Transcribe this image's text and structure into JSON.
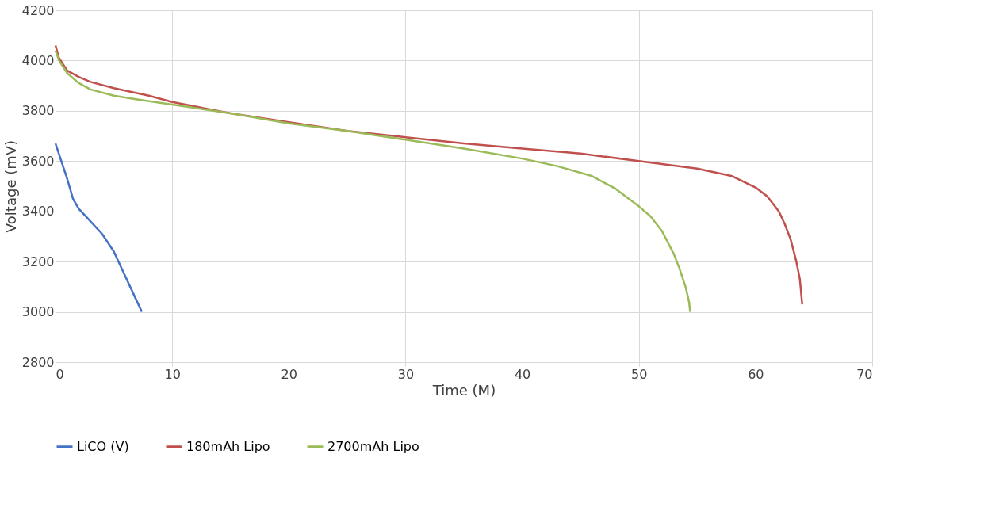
{
  "chart_data": {
    "type": "line",
    "xlabel": "Time (M)",
    "ylabel": "Voltage (mV)",
    "xlim": [
      0,
      70
    ],
    "xticks": [
      0,
      10,
      20,
      30,
      40,
      50,
      60,
      70
    ],
    "ylim": [
      2800,
      4200
    ],
    "yticks": [
      2800,
      3000,
      3200,
      3400,
      3600,
      3800,
      4000,
      4200
    ],
    "grid": true,
    "legend": "bottom",
    "marker": "none",
    "line_style": "solid",
    "series": [
      {
        "name": "LiCO (V)",
        "color": "#4472c4",
        "x": [
          0,
          0.5,
          1,
          1.5,
          2,
          3,
          4,
          5,
          6,
          7,
          7.4
        ],
        "values": [
          3670,
          3600,
          3530,
          3450,
          3410,
          3360,
          3310,
          3240,
          3140,
          3040,
          3000
        ]
      },
      {
        "name": "180mAh Lipo",
        "color": "#c0504d",
        "x": [
          0,
          0.3,
          1,
          2,
          3,
          5,
          8,
          10,
          15,
          20,
          25,
          30,
          35,
          40,
          45,
          50,
          55,
          58,
          60,
          61,
          62,
          62.5,
          63,
          63.5,
          63.8,
          64
        ],
        "values": [
          4060,
          4010,
          3960,
          3935,
          3915,
          3890,
          3860,
          3835,
          3790,
          3755,
          3720,
          3695,
          3670,
          3650,
          3630,
          3600,
          3570,
          3540,
          3495,
          3460,
          3400,
          3350,
          3290,
          3200,
          3130,
          3030
        ]
      },
      {
        "name": "2700mAh Lipo",
        "color": "#9bbb59",
        "x": [
          0,
          0.3,
          1,
          2,
          3,
          5,
          7,
          10,
          15,
          20,
          25,
          30,
          35,
          40,
          43,
          46,
          48,
          50,
          51,
          52,
          53,
          53.5,
          54,
          54.3,
          54.4
        ],
        "values": [
          4040,
          4000,
          3950,
          3910,
          3885,
          3860,
          3845,
          3825,
          3790,
          3750,
          3720,
          3685,
          3650,
          3610,
          3580,
          3540,
          3490,
          3420,
          3380,
          3320,
          3230,
          3170,
          3100,
          3040,
          3000
        ]
      }
    ]
  }
}
